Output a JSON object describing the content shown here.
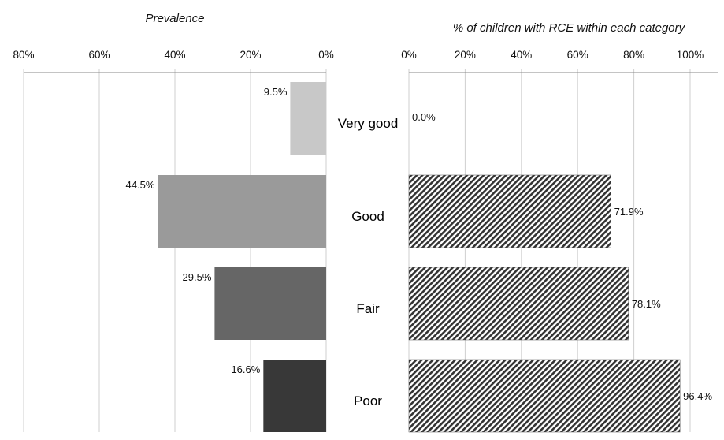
{
  "chart_data": [
    {
      "type": "bar",
      "orientation": "horizontal",
      "direction": "right-to-left",
      "title": "Prevalence",
      "categories": [
        "Very good",
        "Good",
        "Fair",
        "Poor"
      ],
      "values": [
        9.5,
        44.5,
        29.5,
        16.6
      ],
      "data_labels": [
        "9.5%",
        "44.5%",
        "29.5%",
        "16.6%"
      ],
      "colors": [
        "#c8c8c8",
        "#9a9a9a",
        "#666666",
        "#383838"
      ],
      "xlim": [
        0,
        80
      ],
      "ticks": [
        80,
        60,
        40,
        20,
        0
      ],
      "tick_labels": [
        "80%",
        "60%",
        "40%",
        "20%",
        "0%"
      ],
      "grid": true
    },
    {
      "type": "bar",
      "orientation": "horizontal",
      "direction": "left-to-right",
      "title": "% of children with RCE within each category",
      "categories": [
        "Very good",
        "Good",
        "Fair",
        "Poor"
      ],
      "values": [
        0.0,
        71.9,
        78.1,
        96.4
      ],
      "data_labels": [
        "0.0%",
        "71.9%",
        "78.1%",
        "96.4%"
      ],
      "fill": "diagonal-hatch",
      "colors": [
        "#333333"
      ],
      "xlim": [
        0,
        100
      ],
      "ticks": [
        0,
        20,
        40,
        60,
        80,
        100
      ],
      "tick_labels": [
        "0%",
        "20%",
        "40%",
        "60%",
        "80%",
        "100%"
      ],
      "grid": true
    }
  ]
}
